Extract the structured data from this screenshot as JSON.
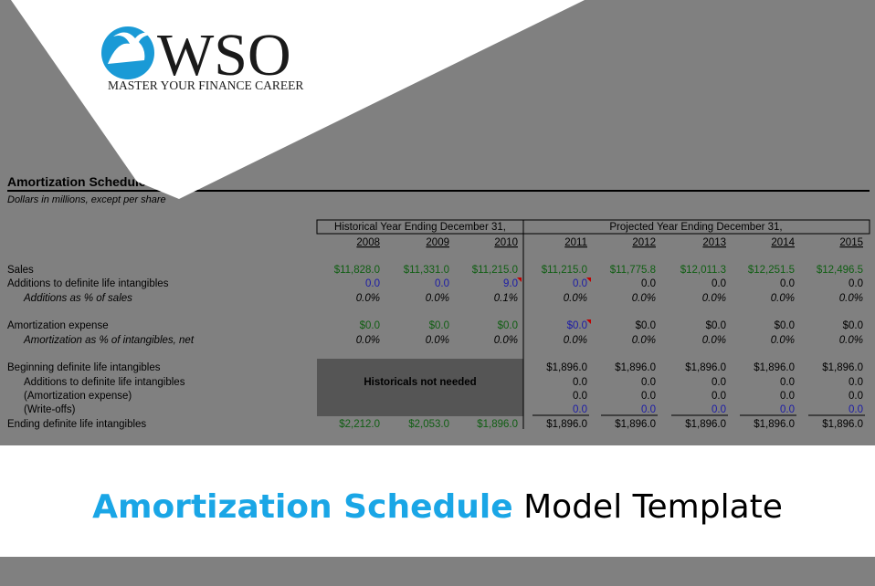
{
  "logo": {
    "brand": "WSO",
    "tagline": "MASTER YOUR FINANCE CAREER"
  },
  "sheet": {
    "title": "Amortization Schedule",
    "subtitle": "Dollars in millions, except per share",
    "historical_header": "Historical Year Ending December 31,",
    "projected_header": "Projected Year Ending December 31,",
    "years": [
      "2008",
      "2009",
      "2010",
      "2011",
      "2012",
      "2013",
      "2014",
      "2015"
    ],
    "note": "Historicals not needed",
    "rows": [
      {
        "label": "Sales",
        "values": [
          "$11,828.0",
          "$11,331.0",
          "$11,215.0",
          "$11,215.0",
          "$11,775.8",
          "$12,011.3",
          "$12,251.5",
          "$12,496.5"
        ]
      },
      {
        "label": "Additions to definite life intangibles",
        "values": [
          "0.0",
          "0.0",
          "9.0",
          "0.0",
          "0.0",
          "0.0",
          "0.0",
          "0.0"
        ]
      },
      {
        "label": "Additions as % of sales",
        "values": [
          "0.0%",
          "0.0%",
          "0.1%",
          "0.0%",
          "0.0%",
          "0.0%",
          "0.0%",
          "0.0%"
        ]
      },
      {
        "label": "Amortization expense",
        "values": [
          "$0.0",
          "$0.0",
          "$0.0",
          "$0.0",
          "$0.0",
          "$0.0",
          "$0.0",
          "$0.0"
        ]
      },
      {
        "label": "Amortization as % of intangibles, net",
        "values": [
          "0.0%",
          "0.0%",
          "0.0%",
          "0.0%",
          "0.0%",
          "0.0%",
          "0.0%",
          "0.0%"
        ]
      },
      {
        "label": "Beginning definite life intangibles",
        "values": [
          null,
          null,
          null,
          "$1,896.0",
          "$1,896.0",
          "$1,896.0",
          "$1,896.0",
          "$1,896.0"
        ]
      },
      {
        "label": "Additions to definite life intangibles",
        "values": [
          null,
          null,
          null,
          "0.0",
          "0.0",
          "0.0",
          "0.0",
          "0.0"
        ]
      },
      {
        "label": "(Amortization expense)",
        "values": [
          null,
          null,
          null,
          "0.0",
          "0.0",
          "0.0",
          "0.0",
          "0.0"
        ]
      },
      {
        "label": "(Write-offs)",
        "values": [
          null,
          null,
          null,
          "0.0",
          "0.0",
          "0.0",
          "0.0",
          "0.0"
        ]
      },
      {
        "label": "Ending definite life intangibles",
        "values": [
          "$2,212.0",
          "$2,053.0",
          "$1,896.0",
          "$1,896.0",
          "$1,896.0",
          "$1,896.0",
          "$1,896.0",
          "$1,896.0"
        ]
      }
    ]
  },
  "banner": {
    "highlight": "Amortization Schedule",
    "rest": "Model Template"
  }
}
